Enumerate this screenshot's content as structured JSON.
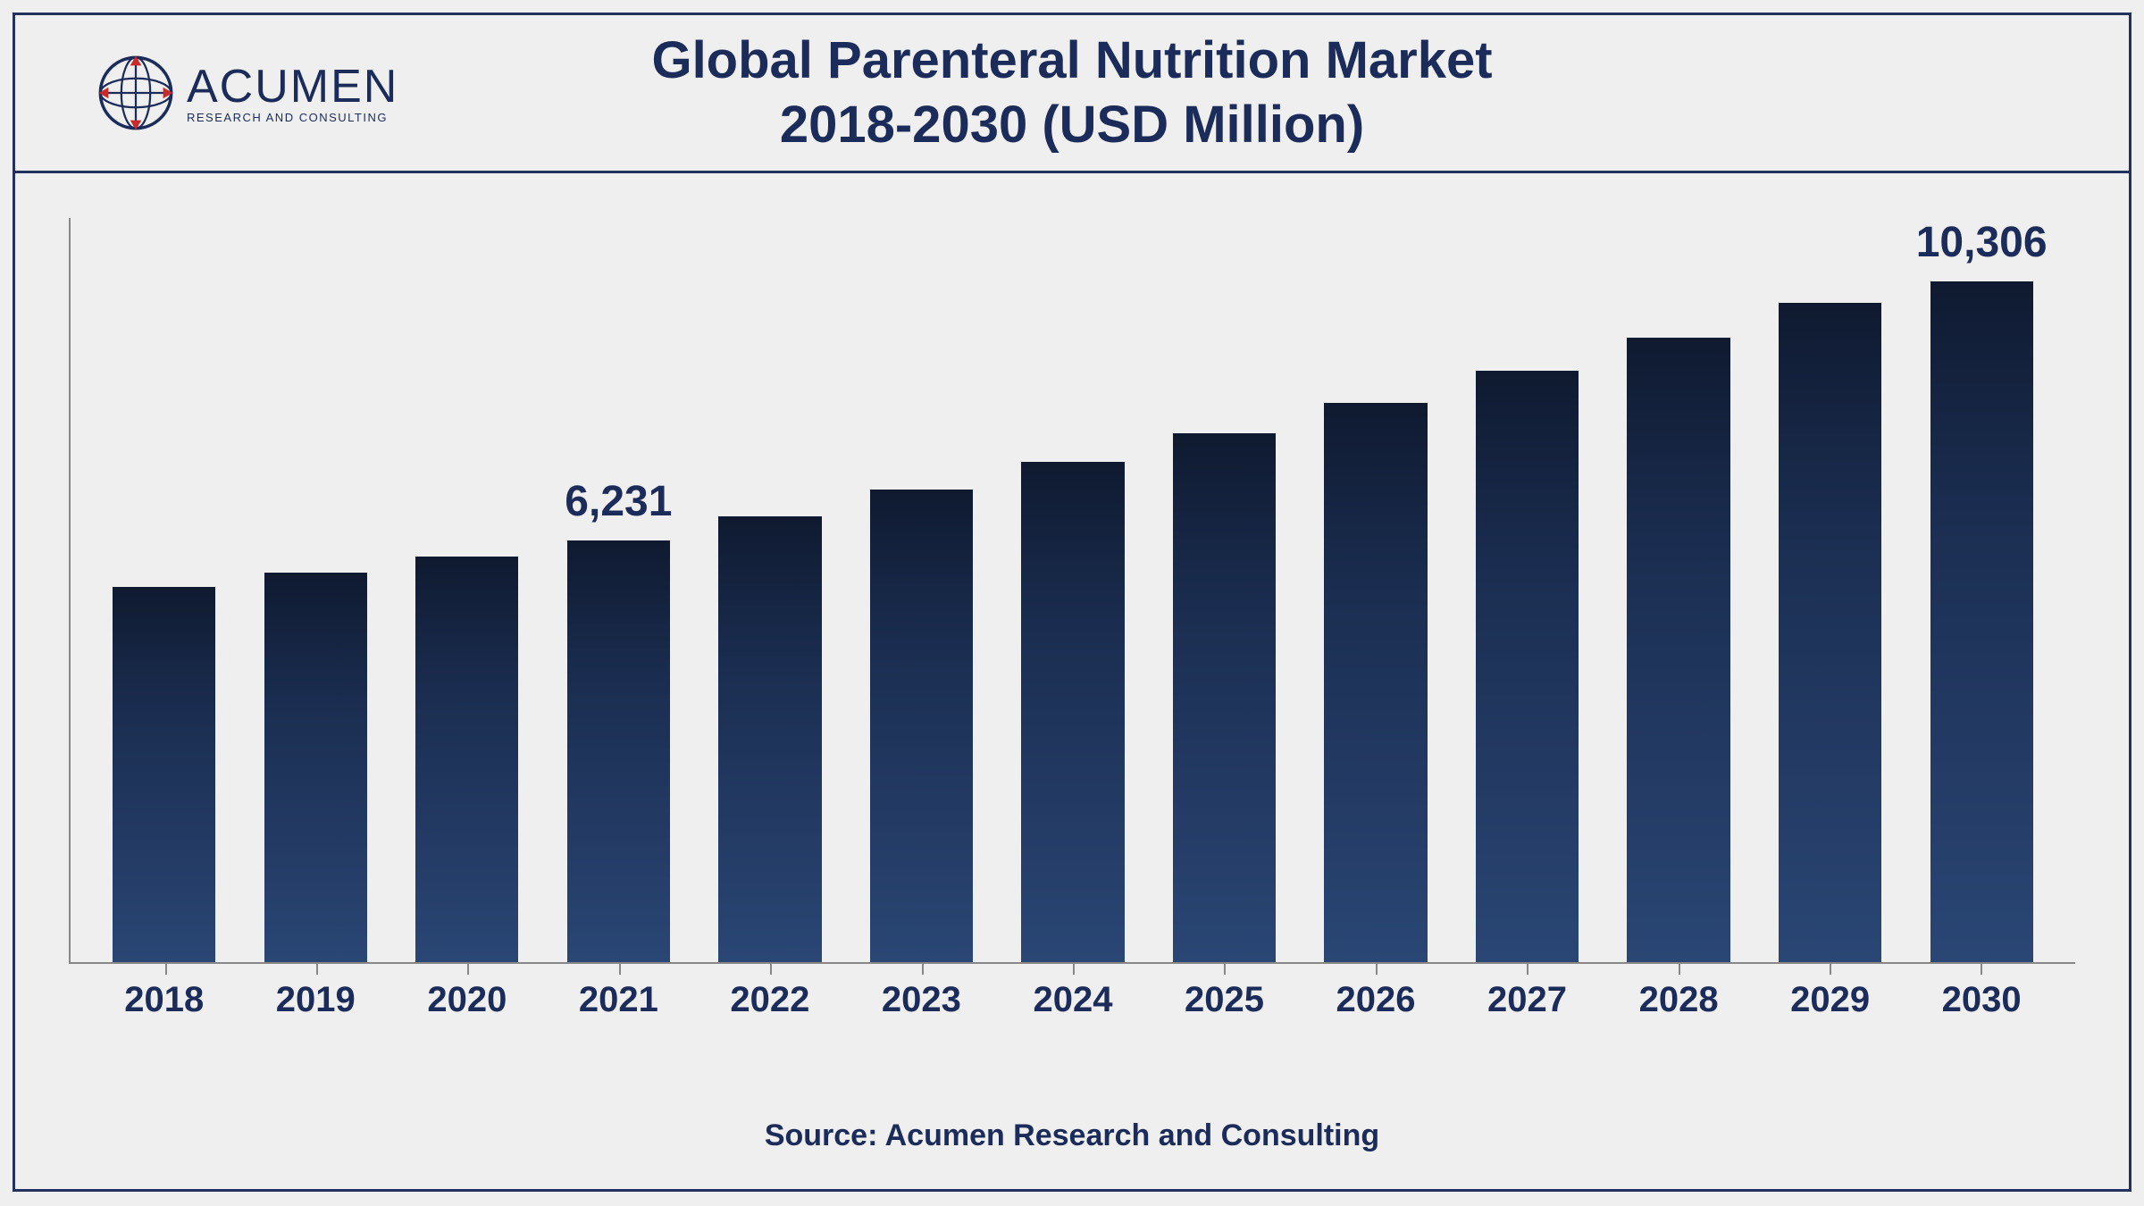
{
  "logo": {
    "main": "ACUMEN",
    "sub": "RESEARCH AND CONSULTING",
    "globe_stroke": "#1b2c5a",
    "globe_accent": "#c92a2a"
  },
  "title": {
    "line1": "Global Parenteral Nutrition Market",
    "line2": "2018-2030 (USD Million)",
    "color": "#1b2c5a",
    "fontsize": 58
  },
  "chart": {
    "type": "bar",
    "categories": [
      "2018",
      "2019",
      "2020",
      "2021",
      "2022",
      "2023",
      "2024",
      "2025",
      "2026",
      "2027",
      "2028",
      "2029",
      "2030"
    ],
    "values": [
      5540,
      5760,
      5990,
      6231,
      6590,
      6980,
      7390,
      7820,
      8270,
      8740,
      9230,
      9750,
      10306
    ],
    "value_labels": {
      "3": "6,231",
      "12": "10,306"
    },
    "ylim": [
      0,
      11000
    ],
    "bar_gradient_top": "#0f1a30",
    "bar_gradient_mid": "#1b2e52",
    "bar_gradient_bottom": "#2a4674",
    "bar_width_ratio": 0.68,
    "axis_color": "#888888",
    "background_color": "#efefef",
    "border_color": "#24315e",
    "xlabel_color": "#1b2c5a",
    "xlabel_fontsize": 40,
    "xlabel_fontweight": 700,
    "value_label_fontsize": 48,
    "value_label_color": "#1b2c5a"
  },
  "source": "Source: Acumen Research and Consulting"
}
